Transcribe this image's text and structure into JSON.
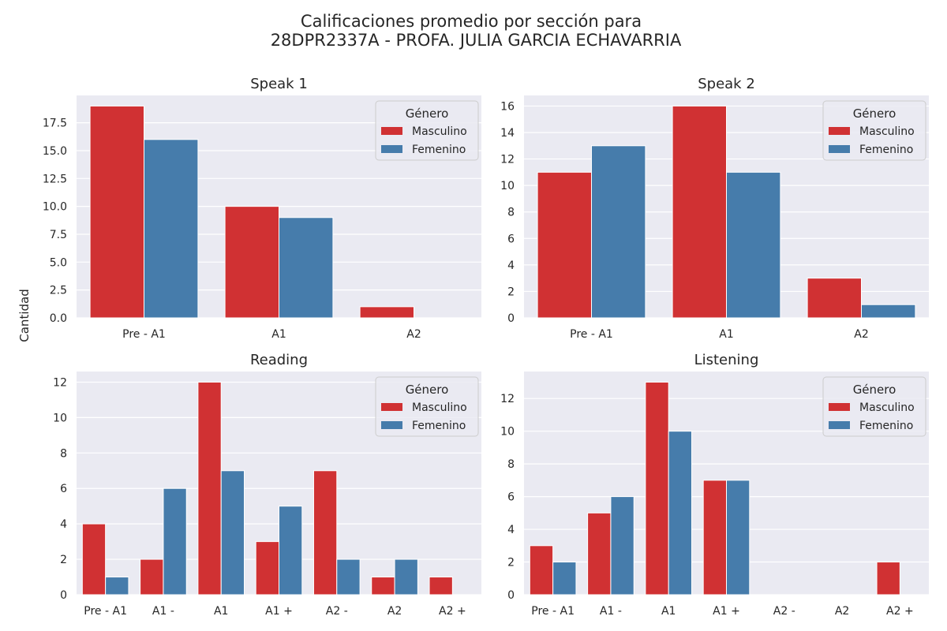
{
  "figure": {
    "title_line1": "Calificaciones promedio por sección para",
    "title_line2": "28DPR2337A - PROFA. JULIA GARCIA ECHAVARRIA",
    "ylabel": "Cantidad"
  },
  "legend": {
    "title": "Género",
    "labels": [
      "Masculino",
      "Femenino"
    ]
  },
  "colors": {
    "Masculino": "#d03133",
    "Femenino": "#467cab",
    "background": "#eaeaf2",
    "grid": "#ffffff"
  },
  "chart_data": [
    {
      "type": "bar",
      "title": "Speak 1",
      "categories": [
        "Pre - A1",
        "A1",
        "A2"
      ],
      "series": [
        {
          "name": "Masculino",
          "values": [
            19,
            10,
            1
          ]
        },
        {
          "name": "Femenino",
          "values": [
            16,
            9,
            0
          ]
        }
      ],
      "ylim": [
        0,
        19.95
      ],
      "yticks": [
        "0.0",
        "2.5",
        "5.0",
        "7.5",
        "10.0",
        "12.5",
        "15.0",
        "17.5"
      ],
      "grid": true,
      "legend_position": "upper right"
    },
    {
      "type": "bar",
      "title": "Speak 2",
      "categories": [
        "Pre - A1",
        "A1",
        "A2"
      ],
      "series": [
        {
          "name": "Masculino",
          "values": [
            11,
            16,
            3
          ]
        },
        {
          "name": "Femenino",
          "values": [
            13,
            11,
            1
          ]
        }
      ],
      "ylim": [
        0,
        16.8
      ],
      "yticks": [
        "0",
        "2",
        "4",
        "6",
        "8",
        "10",
        "12",
        "14",
        "16"
      ],
      "grid": true,
      "legend_position": "upper right"
    },
    {
      "type": "bar",
      "title": "Reading",
      "categories": [
        "Pre - A1",
        "A1 -",
        "A1",
        "A1 +",
        "A2 -",
        "A2",
        "A2 +"
      ],
      "series": [
        {
          "name": "Masculino",
          "values": [
            4,
            2,
            12,
            3,
            7,
            1,
            1
          ]
        },
        {
          "name": "Femenino",
          "values": [
            1,
            6,
            7,
            5,
            2,
            2,
            0
          ]
        }
      ],
      "ylim": [
        0,
        12.6
      ],
      "yticks": [
        "0",
        "2",
        "4",
        "6",
        "8",
        "10",
        "12"
      ],
      "grid": true,
      "legend_position": "upper right"
    },
    {
      "type": "bar",
      "title": "Listening",
      "categories": [
        "Pre - A1",
        "A1 -",
        "A1",
        "A1 +",
        "A2 -",
        "A2",
        "A2 +"
      ],
      "series": [
        {
          "name": "Masculino",
          "values": [
            3,
            5,
            13,
            7,
            0,
            0,
            2
          ]
        },
        {
          "name": "Femenino",
          "values": [
            2,
            6,
            10,
            7,
            0,
            0,
            0
          ]
        }
      ],
      "ylim": [
        0,
        13.65
      ],
      "yticks": [
        "0",
        "2",
        "4",
        "6",
        "8",
        "10",
        "12"
      ],
      "grid": true,
      "legend_position": "upper right"
    }
  ]
}
